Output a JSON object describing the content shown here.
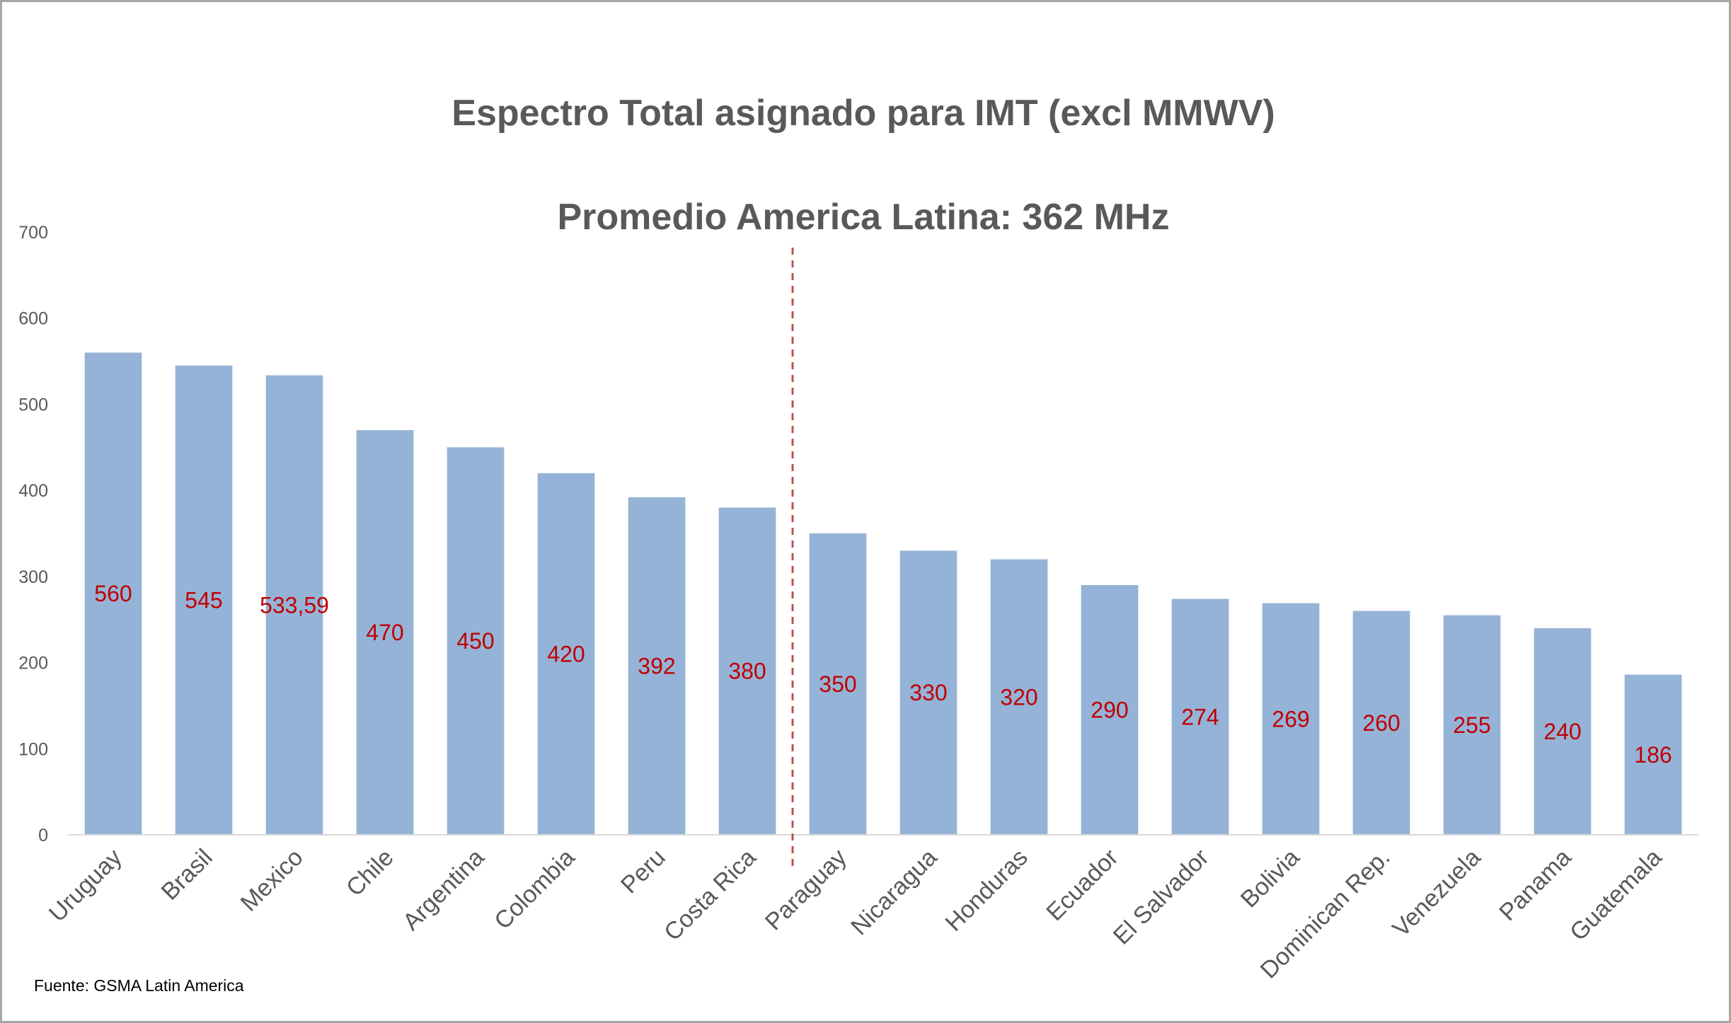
{
  "chart_data": {
    "type": "bar",
    "title": "Espectro Total asignado para IMT (excl MMWV)",
    "subtitle": "Promedio America Latina: 362 MHz",
    "categories": [
      "Uruguay",
      "Brasil",
      "Mexico",
      "Chile",
      "Argentina",
      "Colombia",
      "Peru",
      "Costa Rica",
      "Paraguay",
      "Nicaragua",
      "Honduras",
      "Ecuador",
      "El Salvador",
      "Bolivia",
      "Dominican Rep.",
      "Venezuela",
      "Panama",
      "Guatemala"
    ],
    "values": [
      560,
      545,
      533.59,
      470,
      450,
      420,
      392,
      380,
      350,
      330,
      320,
      290,
      274,
      269,
      260,
      255,
      240,
      186
    ],
    "value_labels": [
      "560",
      "545",
      "533,59",
      "470",
      "450",
      "420",
      "392",
      "380",
      "350",
      "330",
      "320",
      "290",
      "274",
      "269",
      "260",
      "255",
      "240",
      "186"
    ],
    "ylim": [
      0,
      700
    ],
    "yticks": [
      0,
      100,
      200,
      300,
      400,
      500,
      600,
      700
    ],
    "grid": false,
    "legend": "none",
    "average_line_position": "between Costa Rica and Paraguay",
    "colors": {
      "bar": "#95b3d7",
      "value_label": "#c00000",
      "divider": "#c0504d",
      "axis_text": "#595959"
    }
  },
  "source": "Fuente: GSMA Latin America"
}
